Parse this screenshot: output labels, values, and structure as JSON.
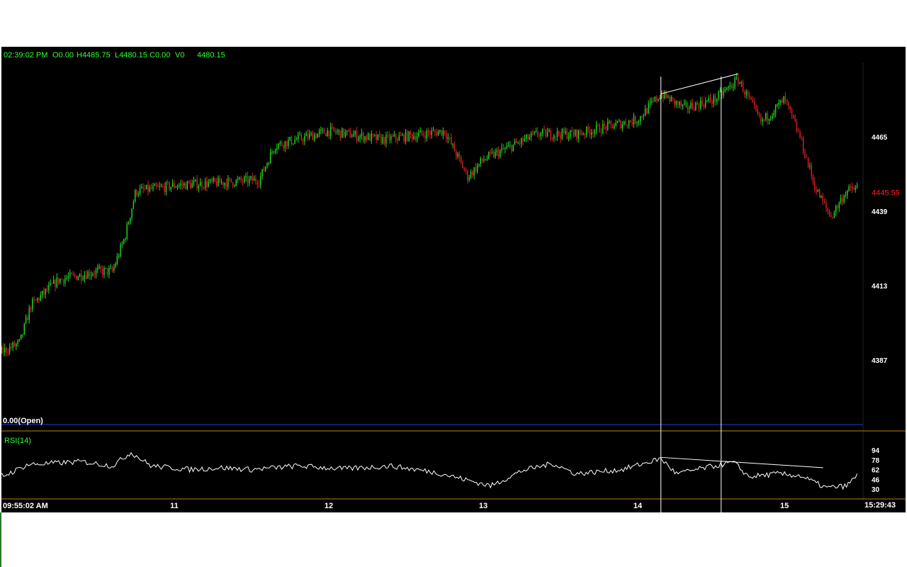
{
  "colors": {
    "background": "#000000",
    "up": "#22dd22",
    "down": "#dd2222",
    "header_text": "#33ff33",
    "rsi_line": "#ffffff",
    "last_price": "#ff2020",
    "separator": "#b8860b",
    "open_line": "#1f3fd0",
    "axis_text": "#ffffff",
    "drawing": "#ffffff"
  },
  "header": {
    "time": "02:39:02 PM",
    "open": "O0.00",
    "high": "H4485.75",
    "low": "L4480.15",
    "close": "C0.00",
    "volume": "V0",
    "last": "4480.15"
  },
  "open_label": "0.00(Open)",
  "rsi_label": "RSI(14)",
  "time_axis": {
    "start_label": "09:55:02 AM",
    "end_label": "15:29:43",
    "day_labels": [
      {
        "label": "11",
        "x": 1.0
      },
      {
        "label": "12",
        "x": 2.0
      },
      {
        "label": "13",
        "x": 3.0
      },
      {
        "label": "14",
        "x": 4.0
      },
      {
        "label": "15",
        "x": 4.95
      }
    ]
  },
  "chart_data": [
    {
      "type": "candlestick",
      "y_ticks": [
        4387,
        4413,
        4439,
        4465
      ],
      "ylim": [
        4332,
        4494
      ],
      "xlim": [
        -1.1,
        5.6
      ],
      "last_price": "4445.55",
      "last_price_value": 4445.55,
      "anchors": [
        {
          "x": -1.1,
          "y": 4375
        },
        {
          "x": -1.0,
          "y": 4383
        },
        {
          "x": -0.7,
          "y": 4392
        },
        {
          "x": -0.45,
          "y": 4388
        },
        {
          "x": -0.15,
          "y": 4389
        },
        {
          "x": 0.0,
          "y": 4393
        },
        {
          "x": 0.07,
          "y": 4406
        },
        {
          "x": 0.25,
          "y": 4415
        },
        {
          "x": 0.5,
          "y": 4418
        },
        {
          "x": 0.6,
          "y": 4418
        },
        {
          "x": 0.68,
          "y": 4430
        },
        {
          "x": 0.75,
          "y": 4446
        },
        {
          "x": 0.9,
          "y": 4447
        },
        {
          "x": 1.0,
          "y": 4448
        },
        {
          "x": 1.3,
          "y": 4449
        },
        {
          "x": 1.55,
          "y": 4450
        },
        {
          "x": 1.65,
          "y": 4462
        },
        {
          "x": 2.0,
          "y": 4467
        },
        {
          "x": 2.35,
          "y": 4464
        },
        {
          "x": 2.75,
          "y": 4467
        },
        {
          "x": 2.9,
          "y": 4451
        },
        {
          "x": 3.0,
          "y": 4457
        },
        {
          "x": 3.35,
          "y": 4466
        },
        {
          "x": 3.6,
          "y": 4466
        },
        {
          "x": 4.0,
          "y": 4471
        },
        {
          "x": 4.15,
          "y": 4480
        },
        {
          "x": 4.3,
          "y": 4475
        },
        {
          "x": 4.5,
          "y": 4478
        },
        {
          "x": 4.65,
          "y": 4485
        },
        {
          "x": 4.8,
          "y": 4470
        },
        {
          "x": 4.95,
          "y": 4478
        },
        {
          "x": 5.05,
          "y": 4465
        },
        {
          "x": 5.15,
          "y": 4447
        },
        {
          "x": 5.25,
          "y": 4437
        },
        {
          "x": 5.35,
          "y": 4446
        },
        {
          "x": 5.42,
          "y": 4447
        }
      ]
    },
    {
      "type": "line",
      "name": "RSI(14)",
      "y_ticks": [
        30,
        46,
        62,
        78,
        94
      ],
      "ylim": [
        22,
        100
      ],
      "anchors": [
        {
          "x": -0.85,
          "y": 75
        },
        {
          "x": -0.7,
          "y": 62
        },
        {
          "x": -0.4,
          "y": 60
        },
        {
          "x": -0.1,
          "y": 52
        },
        {
          "x": 0.05,
          "y": 70
        },
        {
          "x": 0.4,
          "y": 75
        },
        {
          "x": 0.6,
          "y": 68
        },
        {
          "x": 0.72,
          "y": 90
        },
        {
          "x": 0.85,
          "y": 68
        },
        {
          "x": 1.1,
          "y": 62
        },
        {
          "x": 1.3,
          "y": 65
        },
        {
          "x": 1.5,
          "y": 62
        },
        {
          "x": 1.8,
          "y": 68
        },
        {
          "x": 2.1,
          "y": 63
        },
        {
          "x": 2.4,
          "y": 68
        },
        {
          "x": 2.7,
          "y": 57
        },
        {
          "x": 3.05,
          "y": 35
        },
        {
          "x": 3.25,
          "y": 60
        },
        {
          "x": 3.45,
          "y": 72
        },
        {
          "x": 3.6,
          "y": 55
        },
        {
          "x": 3.9,
          "y": 62
        },
        {
          "x": 4.15,
          "y": 80
        },
        {
          "x": 4.25,
          "y": 55
        },
        {
          "x": 4.5,
          "y": 68
        },
        {
          "x": 4.62,
          "y": 74
        },
        {
          "x": 4.72,
          "y": 50
        },
        {
          "x": 4.9,
          "y": 55
        },
        {
          "x": 5.05,
          "y": 52
        },
        {
          "x": 5.22,
          "y": 32
        },
        {
          "x": 5.35,
          "y": 35
        },
        {
          "x": 5.42,
          "y": 52
        }
      ]
    }
  ],
  "drawings": {
    "vertical_lines": [
      4.15,
      4.54
    ],
    "price_trendline": [
      {
        "x": 4.15,
        "y": 4480
      },
      {
        "x": 4.65,
        "y": 4487
      }
    ],
    "rsi_trendline": [
      {
        "x": 4.15,
        "y": 82
      },
      {
        "x": 5.2,
        "y": 65
      }
    ]
  }
}
